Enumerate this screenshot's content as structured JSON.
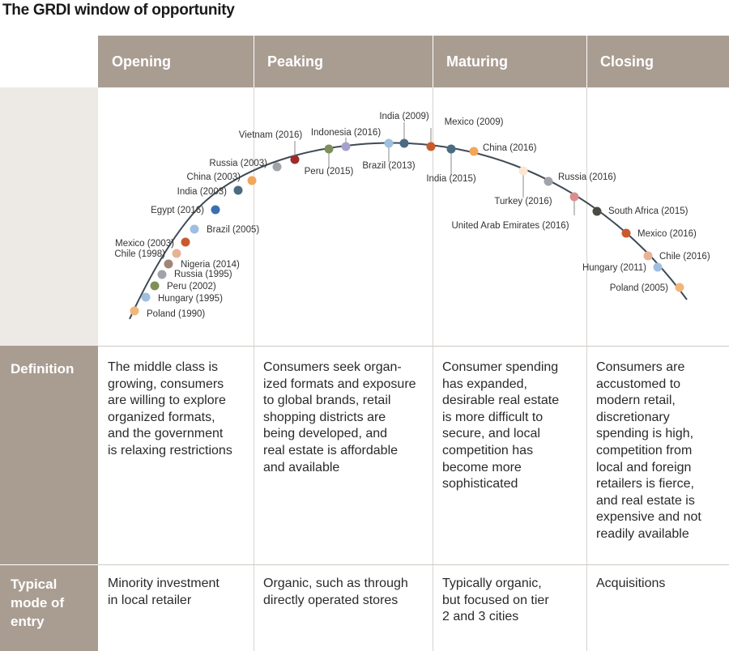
{
  "title": "The GRDI window of opportunity",
  "stages": [
    {
      "label": "Opening"
    },
    {
      "label": "Peaking"
    },
    {
      "label": "Maturing"
    },
    {
      "label": "Closing"
    }
  ],
  "row_labels": {
    "definition": "Definition",
    "entry_line1": "Typical",
    "entry_line2": "mode of",
    "entry_line3": "entry"
  },
  "definitions": [
    [
      "The middle class is",
      "growing, consumers",
      "are willing to explore",
      "organized formats,",
      "and the government",
      "is relaxing restrictions"
    ],
    [
      "Consumers seek organ-",
      "ized formats and exposure",
      "to global brands, retail",
      "shopping districts are",
      "being developed, and",
      "real estate is affordable",
      "and available"
    ],
    [
      "Consumer spending",
      "has expanded,",
      "desirable real estate",
      "is more difficult to",
      "secure, and local",
      "competition has",
      "become more",
      "sophisticated"
    ],
    [
      "Consumers are",
      "accustomed to",
      "modern retail,",
      "discretionary",
      "spending is high,",
      "competition from",
      "local and foreign",
      "retailers is fierce,",
      "and real estate is",
      "expensive and not",
      "readily available"
    ]
  ],
  "modes_of_entry": [
    [
      "Minority investment",
      "in local retailer"
    ],
    [
      "Organic, such as through",
      "directly operated stores"
    ],
    [
      "Typically organic,",
      "but focused on tier",
      "2 and 3 cities"
    ],
    [
      "Acquisitions"
    ]
  ],
  "countries": [
    {
      "label": "Poland (1990)",
      "color": "#f2b57a"
    },
    {
      "label": "Hungary (1995)",
      "color": "#9fbfe0"
    },
    {
      "label": "Peru (2002)",
      "color": "#7f8f5a"
    },
    {
      "label": "Russia (1995)",
      "color": "#a0a4a8"
    },
    {
      "label": "Nigeria (2014)",
      "color": "#a08676"
    },
    {
      "label": "Chile (1998)",
      "color": "#e8b296"
    },
    {
      "label": "Mexico (2003)",
      "color": "#c95a2e"
    },
    {
      "label": "Brazil (2005)",
      "color": "#9fbfe0"
    },
    {
      "label": "Egypt (2016)",
      "color": "#3d6fb0"
    },
    {
      "label": "India (2003)",
      "color": "#4a6b80"
    },
    {
      "label": "China (2003)",
      "color": "#f2a65a"
    },
    {
      "label": "Russia (2003)",
      "color": "#a0a4a8"
    },
    {
      "label": "Vietnam (2016)",
      "color": "#9e2b2b"
    },
    {
      "label": "Peru (2015)",
      "color": "#7f8f5a"
    },
    {
      "label": "Indonesia (2016)",
      "color": "#a8a0cc"
    },
    {
      "label": "Brazil (2013)",
      "color": "#9fbfe0"
    },
    {
      "label": "India (2009)",
      "color": "#4a6b80"
    },
    {
      "label": "Mexico (2009)",
      "color": "#c95a2e"
    },
    {
      "label": "India (2015)",
      "color": "#4a6b80"
    },
    {
      "label": "China (2016)",
      "color": "#f2a65a"
    },
    {
      "label": "Turkey (2016)",
      "color": "#fbe6d4"
    },
    {
      "label": "Russia (2016)",
      "color": "#a0a4a8"
    },
    {
      "label": "United Arab Emirates (2016)",
      "color": "#d98e8e"
    },
    {
      "label": "South Africa (2015)",
      "color": "#4a4a44"
    },
    {
      "label": "Mexico (2016)",
      "color": "#c95a2e"
    },
    {
      "label": "Chile (2016)",
      "color": "#e8b296"
    },
    {
      "label": "Hungary (2011)",
      "color": "#9fbfe0"
    },
    {
      "label": "Poland (2005)",
      "color": "#f2b57a"
    }
  ]
}
